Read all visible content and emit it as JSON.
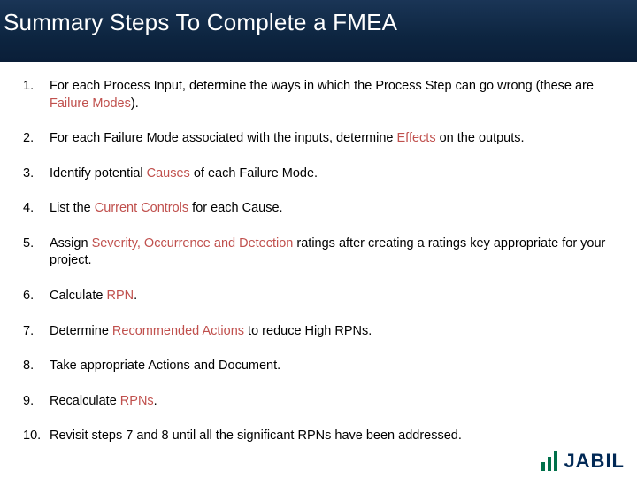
{
  "header": {
    "title": "Summary Steps To Complete a FMEA",
    "bg_gradient_top": "#1a3556",
    "bg_gradient_bottom": "#0a1e38",
    "title_color": "#ffffff",
    "title_fontsize": 26
  },
  "highlight_color": "#c0504d",
  "body_text_color": "#000000",
  "body_fontsize": 14.5,
  "steps": [
    {
      "num": "1.",
      "segments": [
        {
          "t": "For each Process Input, determine the ways in which the Process Step can go wrong (these are ",
          "hl": false
        },
        {
          "t": "Failure Modes",
          "hl": true
        },
        {
          "t": ").",
          "hl": false
        }
      ]
    },
    {
      "num": "2.",
      "segments": [
        {
          "t": "For each Failure Mode associated with the inputs, determine ",
          "hl": false
        },
        {
          "t": "Effects",
          "hl": true
        },
        {
          "t": " on the outputs.",
          "hl": false
        }
      ]
    },
    {
      "num": "3.",
      "segments": [
        {
          "t": "Identify potential ",
          "hl": false
        },
        {
          "t": "Causes",
          "hl": true
        },
        {
          "t": " of each Failure Mode.",
          "hl": false
        }
      ]
    },
    {
      "num": "4.",
      "segments": [
        {
          "t": "List the ",
          "hl": false
        },
        {
          "t": "Current Controls",
          "hl": true
        },
        {
          "t": " for each Cause.",
          "hl": false
        }
      ]
    },
    {
      "num": "5.",
      "segments": [
        {
          "t": "Assign ",
          "hl": false
        },
        {
          "t": "Severity, Occurrence and Detection",
          "hl": true
        },
        {
          "t": " ratings after creating a ratings key appropriate for your project.",
          "hl": false
        }
      ]
    },
    {
      "num": "6.",
      "segments": [
        {
          "t": "Calculate ",
          "hl": false
        },
        {
          "t": "RPN",
          "hl": true
        },
        {
          "t": ".",
          "hl": false
        }
      ]
    },
    {
      "num": "7.",
      "segments": [
        {
          "t": "Determine ",
          "hl": false
        },
        {
          "t": "Recommended Actions",
          "hl": true
        },
        {
          "t": " to reduce High RPNs.",
          "hl": false
        }
      ]
    },
    {
      "num": "8.",
      "segments": [
        {
          "t": "Take appropriate Actions and Document.",
          "hl": false
        }
      ]
    },
    {
      "num": "9.",
      "segments": [
        {
          "t": "Recalculate ",
          "hl": false
        },
        {
          "t": "RPNs",
          "hl": true
        },
        {
          "t": ".",
          "hl": false
        }
      ]
    },
    {
      "num": "10.",
      "segments": [
        {
          "t": "Revisit steps 7 and 8 until all the significant RPNs have been addressed.",
          "hl": false
        }
      ]
    }
  ],
  "footer": {
    "logo_text": "JABIL",
    "logo_text_color": "#002855",
    "logo_bar_color": "#00704a"
  }
}
